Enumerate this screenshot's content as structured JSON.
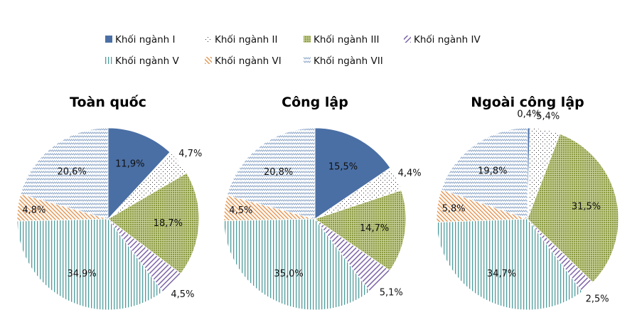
{
  "chart_data": {
    "type": "pie",
    "legend_position": "top",
    "categories": [
      "Khối ngành I",
      "Khối ngành II",
      "Khối ngành III",
      "Khối ngành IV",
      "Khối ngành V",
      "Khối ngành VI",
      "Khối ngành VII"
    ],
    "colors": [
      "#4a6fa5",
      "#444444",
      "#9aaa50",
      "#7d63a8",
      "#4e9c9c",
      "#e59a5a",
      "#8fa8c8"
    ],
    "pies": [
      {
        "title": "Toàn quốc",
        "values": [
          11.9,
          4.7,
          18.7,
          4.5,
          34.9,
          4.8,
          20.6
        ],
        "labels": [
          "11,9%",
          "4,7%",
          "18,7%",
          "4,5%",
          "34,9%",
          "4,8%",
          "20,6%"
        ]
      },
      {
        "title": "Công lập",
        "values": [
          15.5,
          4.4,
          14.7,
          5.1,
          35.0,
          4.5,
          20.8
        ],
        "labels": [
          "15,5%",
          "4,4%",
          "14,7%",
          "5,1%",
          "35,0%",
          "4,5%",
          "20,8%"
        ]
      },
      {
        "title": "Ngoài công lập",
        "values": [
          0.4,
          5.4,
          31.5,
          2.5,
          34.7,
          5.8,
          19.8
        ],
        "labels": [
          "0,4%",
          "5,4%",
          "31,5%",
          "2,5%",
          "34,7%",
          "5,8%",
          "19,8%"
        ]
      }
    ]
  }
}
